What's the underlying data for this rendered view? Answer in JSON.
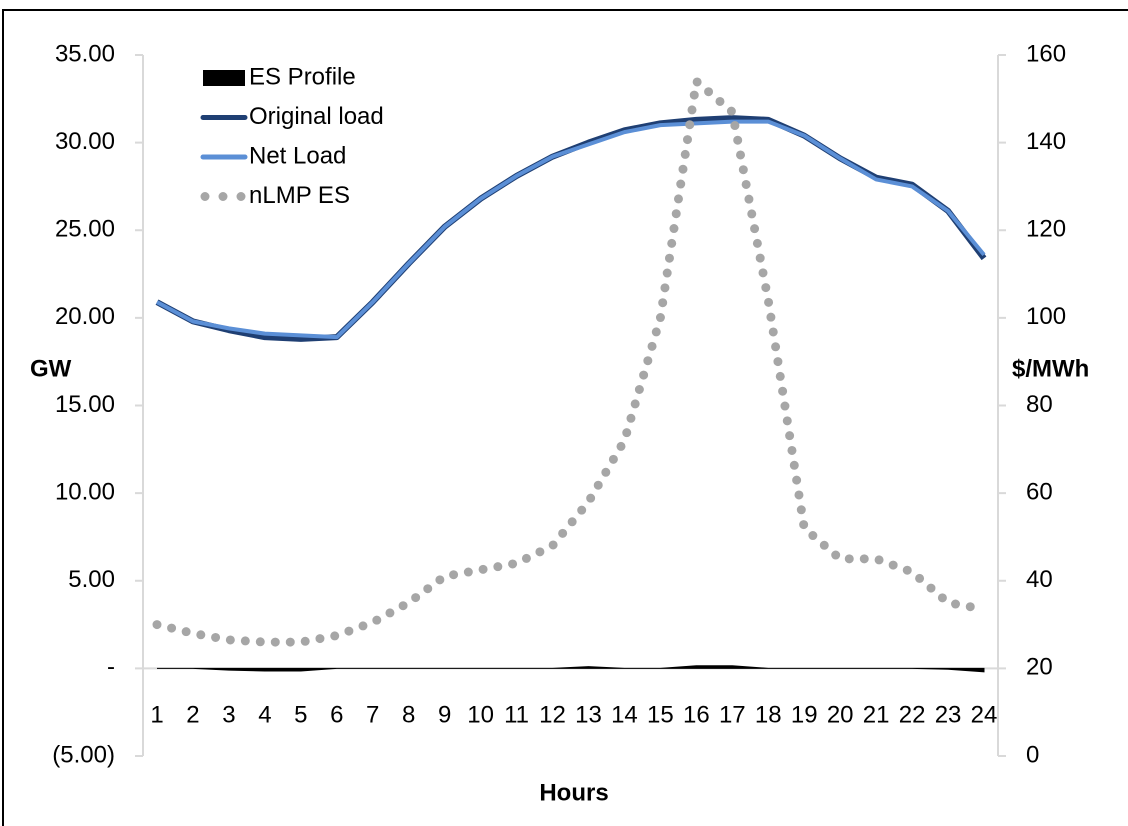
{
  "chart_data": {
    "type": "line",
    "x_label": "Hours",
    "y_label": "GW",
    "y2_label": "$/MWh",
    "categories": [
      "1",
      "2",
      "3",
      "4",
      "5",
      "6",
      "7",
      "8",
      "9",
      "10",
      "11",
      "12",
      "13",
      "14",
      "15",
      "16",
      "17",
      "18",
      "19",
      "20",
      "21",
      "22",
      "23",
      "24"
    ],
    "series": [
      {
        "name": "ES Profile",
        "type": "area",
        "color": "#000000",
        "axis": "y",
        "values": [
          0,
          0,
          -0.1,
          -0.15,
          -0.15,
          0,
          0,
          0,
          0,
          0,
          0,
          0,
          0.1,
          0,
          0,
          0.15,
          0.15,
          0,
          0,
          0,
          0,
          0,
          -0.05,
          -0.2
        ]
      },
      {
        "name": "Original load",
        "type": "line",
        "color": "#1f3f73",
        "axis": "y",
        "values": [
          20.9,
          19.8,
          19.3,
          18.9,
          18.8,
          18.9,
          20.9,
          23.1,
          25.2,
          26.8,
          28.1,
          29.2,
          30.0,
          30.7,
          31.1,
          31.3,
          31.4,
          31.3,
          30.4,
          29.1,
          28.0,
          27.6,
          26.1,
          23.4
        ]
      },
      {
        "name": "Net Load",
        "type": "line",
        "color": "#5b8fd6",
        "axis": "y",
        "values": [
          20.9,
          19.8,
          19.4,
          19.1,
          19.0,
          18.9,
          20.9,
          23.1,
          25.2,
          26.8,
          28.1,
          29.2,
          29.9,
          30.6,
          31.0,
          31.1,
          31.2,
          31.2,
          30.4,
          29.1,
          27.9,
          27.5,
          26.1,
          23.6
        ]
      },
      {
        "name": "nLMP ES",
        "type": "dotted",
        "color": "#a6a6a6",
        "axis": "y2",
        "values": [
          30,
          28,
          26.5,
          26,
          26,
          27.5,
          30.5,
          35,
          41,
          42.5,
          44,
          48,
          58,
          72,
          100,
          154,
          147,
          104,
          52,
          45,
          45,
          42,
          35,
          33.5
        ]
      }
    ],
    "ylim": [
      -5,
      35
    ],
    "yticks": [
      {
        "value": -5,
        "label": "(5.00)"
      },
      {
        "value": 0,
        "label": "-"
      },
      {
        "value": 5,
        "label": "5.00"
      },
      {
        "value": 10,
        "label": "10.00"
      },
      {
        "value": 15,
        "label": "15.00"
      },
      {
        "value": 20,
        "label": "20.00"
      },
      {
        "value": 25,
        "label": "25.00"
      },
      {
        "value": 30,
        "label": "30.00"
      },
      {
        "value": 35,
        "label": "35.00"
      }
    ],
    "y2lim": [
      0,
      160
    ],
    "y2ticks": [
      0,
      20,
      40,
      60,
      80,
      100,
      120,
      140,
      160
    ],
    "legend": "upper left"
  }
}
